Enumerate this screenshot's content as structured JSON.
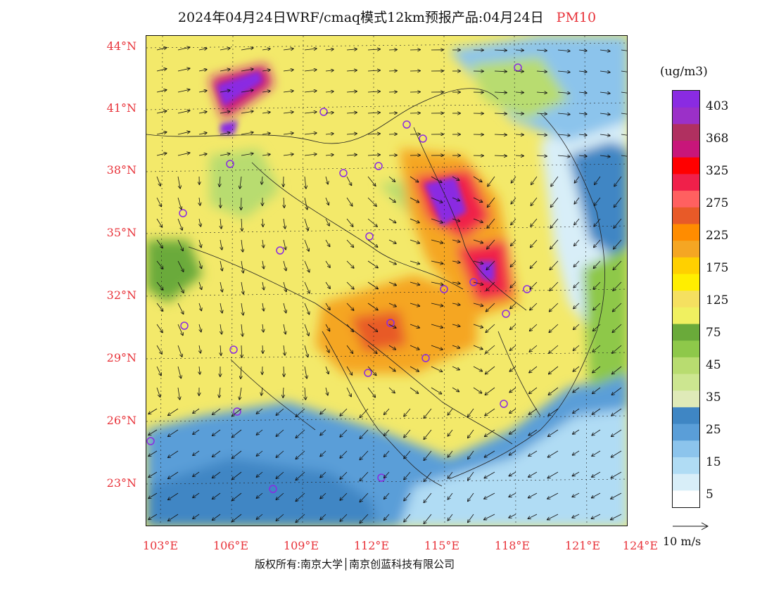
{
  "title": {
    "main": "2024年04月24日WRF/cmaq模式12km预报产品:04月24日",
    "species": "PM10",
    "species_color": "#e8333a"
  },
  "axes": {
    "lat_labels": [
      "44°N",
      "41°N",
      "38°N",
      "35°N",
      "32°N",
      "29°N",
      "26°N",
      "23°N"
    ],
    "lon_labels": [
      "103°E",
      "106°E",
      "109°E",
      "112°E",
      "115°E",
      "118°E",
      "121°E",
      "124°E"
    ],
    "label_color": "#e8333a"
  },
  "legend": {
    "unit": "(ug/m3)",
    "labels": [
      "403",
      "368",
      "325",
      "275",
      "225",
      "175",
      "125",
      "75",
      "45",
      "35",
      "25",
      "15",
      "5"
    ],
    "colors": [
      "#8a2be2",
      "#9b30c8",
      "#b03060",
      "#c8167a",
      "#ff0000",
      "#f0204a",
      "#ff6060",
      "#e85a28",
      "#ff8c00",
      "#f5a623",
      "#ffd000",
      "#ffee00",
      "#f5e060",
      "#f0f060",
      "#6aaa3a",
      "#8ec84a",
      "#b8dc70",
      "#cce690",
      "#dfeab8",
      "#3f86c4",
      "#5a9ed8",
      "#8cc4ec",
      "#b0dcf4",
      "#d8eef8",
      "#ffffff"
    ]
  },
  "wind": {
    "reference_label": "10 m/s"
  },
  "credit": "版权所有:南京大学│南京创蓝科技有限公司"
}
